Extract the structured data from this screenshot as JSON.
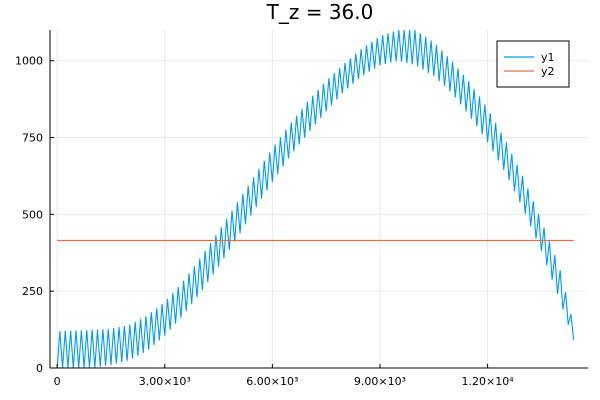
{
  "chart_data": {
    "type": "line",
    "title": "T_z = 36.0",
    "xlabel": "",
    "ylabel": "",
    "xlim": [
      -200,
      14800
    ],
    "ylim": [
      0,
      1100
    ],
    "grid": true,
    "legend_position": "top-right",
    "x_ticks": [
      {
        "value": 0,
        "label": "0"
      },
      {
        "value": 3000,
        "label": "3.00×10³"
      },
      {
        "value": 6000,
        "label": "6.00×10³"
      },
      {
        "value": 9000,
        "label": "9.00×10³"
      },
      {
        "value": 12000,
        "label": "1.20×10⁴"
      }
    ],
    "y_ticks": [
      {
        "value": 0,
        "label": "0"
      },
      {
        "value": 250,
        "label": "250"
      },
      {
        "value": 500,
        "label": "500"
      },
      {
        "value": 750,
        "label": "750"
      },
      {
        "value": 1000,
        "label": "1000"
      }
    ],
    "series": [
      {
        "name": "y1",
        "color": "#009af9",
        "style": "oscillating band",
        "x": [
          0,
          500,
          1000,
          1500,
          2000,
          2500,
          3000,
          3500,
          4000,
          4500,
          5000,
          5500,
          6000,
          6500,
          7000,
          7500,
          8000,
          8500,
          9000,
          9500,
          10000,
          10500,
          11000,
          11500,
          12000,
          12500,
          13000,
          13500,
          14000,
          14400
        ],
        "upper": [
          120,
          122,
          124,
          128,
          140,
          170,
          215,
          280,
          360,
          445,
          535,
          625,
          715,
          795,
          870,
          935,
          990,
          1040,
          1080,
          1100,
          1100,
          1060,
          1000,
          930,
          845,
          740,
          620,
          480,
          330,
          140
        ],
        "lower": [
          0,
          0,
          0,
          10,
          25,
          55,
          105,
          170,
          245,
          330,
          420,
          515,
          605,
          690,
          765,
          835,
          900,
          950,
          985,
          1000,
          985,
          950,
          895,
          820,
          735,
          635,
          515,
          380,
          225,
          90
        ]
      },
      {
        "name": "y2",
        "color": "#e26f46",
        "x": [
          0,
          14400
        ],
        "values": [
          415,
          415
        ]
      }
    ]
  }
}
